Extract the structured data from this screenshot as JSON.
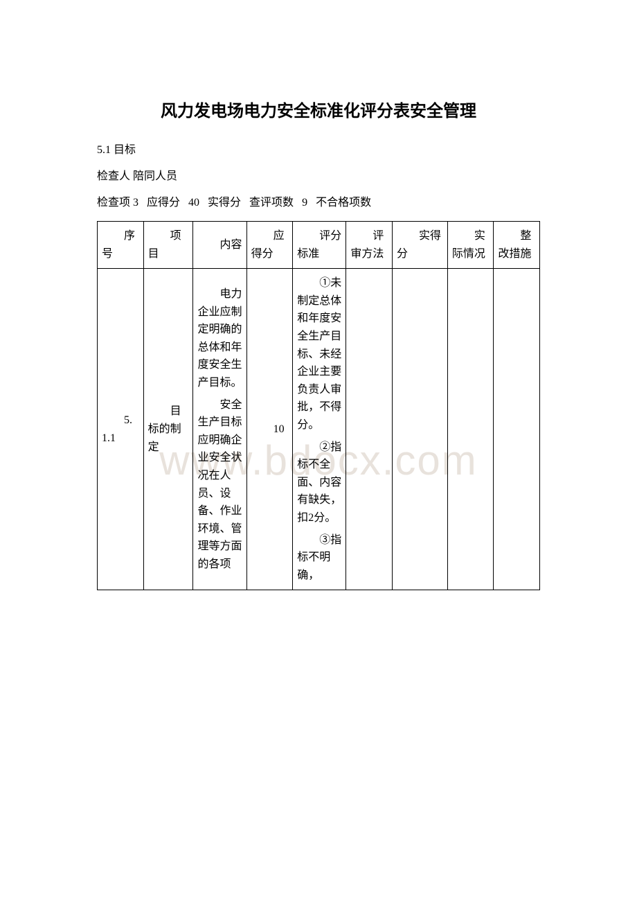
{
  "title": "风力发电场电力安全标准化评分表安全管理",
  "meta": {
    "section": "5.1 目标",
    "inspector_label": "检查人",
    "accompany_label": "陪同人员",
    "check_items_label": "检查项",
    "check_items_value": "3",
    "should_score_label": "应得分",
    "should_score_value": "40",
    "actual_score_label": "实得分",
    "actual_score_value": "",
    "eval_items_label": "查评项数",
    "eval_items_value": "9",
    "fail_items_label": "不合格项数",
    "fail_items_value": ""
  },
  "table": {
    "headers": {
      "seq": "序号",
      "project": "项目",
      "content": "内容",
      "should_score": "应得分",
      "criteria": "评分标准",
      "method": "评审方法",
      "actual_score": "实得分",
      "situation": "实际情况",
      "measures": "整改措施"
    },
    "rows": [
      {
        "seq": "5.1.1",
        "project": "目标的制定",
        "content_p1": "电力企业应制定明确的总体和年度安全生产目标。",
        "content_p2": "安全生产目标应明确企业安全状况在人员、设备、作业环境、管理等方面的各项",
        "should_score": "10",
        "criteria_p1": "①未制定总体和年度安全生产目标、未经企业主要负责人审批，不得分。",
        "criteria_p2": "②指标不全面、内容有缺失，扣2分。",
        "criteria_p3": "③指标不明确，",
        "method": "",
        "actual_score": "",
        "situation": "",
        "measures": ""
      }
    ]
  },
  "watermark": "www.bdocx.com",
  "colors": {
    "text": "#000000",
    "border": "#000000",
    "background": "#ffffff",
    "watermark": "#e8e2dc"
  }
}
